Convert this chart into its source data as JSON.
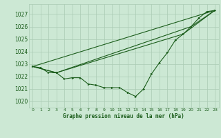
{
  "title": "Graphe pression niveau de la mer (hPa)",
  "background_color": "#cce8d4",
  "grid_color": "#aacbb4",
  "line_color": "#1a5c1a",
  "xlim": [
    -0.5,
    23.5
  ],
  "ylim": [
    1019.5,
    1027.8
  ],
  "yticks": [
    1020,
    1021,
    1022,
    1023,
    1024,
    1025,
    1026,
    1027
  ],
  "xticks": [
    0,
    1,
    2,
    3,
    4,
    5,
    6,
    7,
    8,
    9,
    10,
    11,
    12,
    13,
    14,
    15,
    16,
    17,
    18,
    19,
    20,
    21,
    22,
    23
  ],
  "series_main": {
    "x": [
      0,
      1,
      2,
      3,
      4,
      5,
      6,
      7,
      8,
      9,
      10,
      11,
      12,
      13,
      14,
      15,
      16,
      17,
      18,
      19,
      20,
      21,
      22,
      23
    ],
    "y": [
      1022.8,
      1022.7,
      1022.3,
      1022.3,
      1021.8,
      1021.9,
      1021.9,
      1021.4,
      1021.3,
      1021.1,
      1021.1,
      1021.1,
      1020.7,
      1020.4,
      1021.0,
      1022.2,
      1023.1,
      1023.9,
      1024.9,
      1025.4,
      1026.0,
      1026.7,
      1027.2,
      1027.3
    ]
  },
  "series_lines": [
    {
      "x": [
        0,
        23
      ],
      "y": [
        1022.8,
        1027.3
      ]
    },
    {
      "x": [
        0,
        3,
        20,
        23
      ],
      "y": [
        1022.8,
        1022.3,
        1026.0,
        1027.3
      ]
    },
    {
      "x": [
        0,
        3,
        19,
        23
      ],
      "y": [
        1022.8,
        1022.3,
        1025.4,
        1027.3
      ]
    }
  ]
}
